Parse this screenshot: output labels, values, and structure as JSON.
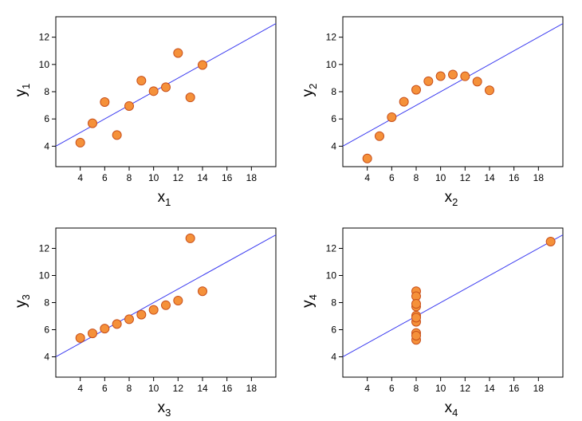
{
  "colors": {
    "points_fill": "#f5913a",
    "points_stroke": "#c8501c",
    "fit_line": "#3b3bf0"
  },
  "chart_data": [
    {
      "type": "scatter",
      "xlabel": "x",
      "xlabel_sub": "1",
      "ylabel": "y",
      "ylabel_sub": "1",
      "xlim": [
        2,
        20
      ],
      "ylim": [
        2.5,
        13.5
      ],
      "xticks": [
        "4",
        "6",
        "8",
        "10",
        "12",
        "14",
        "16",
        "18"
      ],
      "yticks": [
        "4",
        "6",
        "8",
        "10",
        "12"
      ],
      "x": [
        10,
        8,
        13,
        9,
        11,
        14,
        6,
        4,
        12,
        7,
        5
      ],
      "y": [
        8.04,
        6.95,
        7.58,
        8.81,
        8.33,
        9.96,
        7.24,
        4.26,
        10.84,
        4.82,
        5.68
      ],
      "fit": {
        "intercept": 3.0,
        "slope": 0.5
      }
    },
    {
      "type": "scatter",
      "xlabel": "x",
      "xlabel_sub": "2",
      "ylabel": "y",
      "ylabel_sub": "2",
      "xlim": [
        2,
        20
      ],
      "ylim": [
        2.5,
        13.5
      ],
      "xticks": [
        "4",
        "6",
        "8",
        "10",
        "12",
        "14",
        "16",
        "18"
      ],
      "yticks": [
        "4",
        "6",
        "8",
        "10",
        "12"
      ],
      "x": [
        10,
        8,
        13,
        9,
        11,
        14,
        6,
        4,
        12,
        7,
        5
      ],
      "y": [
        9.14,
        8.14,
        8.74,
        8.77,
        9.26,
        8.1,
        6.13,
        3.1,
        9.13,
        7.26,
        4.74
      ],
      "fit": {
        "intercept": 3.0,
        "slope": 0.5
      }
    },
    {
      "type": "scatter",
      "xlabel": "x",
      "xlabel_sub": "3",
      "ylabel": "y",
      "ylabel_sub": "3",
      "xlim": [
        2,
        20
      ],
      "ylim": [
        2.5,
        13.5
      ],
      "xticks": [
        "4",
        "6",
        "8",
        "10",
        "12",
        "14",
        "16",
        "18"
      ],
      "yticks": [
        "4",
        "6",
        "8",
        "10",
        "12"
      ],
      "x": [
        10,
        8,
        13,
        9,
        11,
        14,
        6,
        4,
        12,
        7,
        5
      ],
      "y": [
        7.46,
        6.77,
        12.74,
        7.11,
        7.81,
        8.84,
        6.08,
        5.39,
        8.15,
        6.42,
        5.73
      ],
      "fit": {
        "intercept": 3.0,
        "slope": 0.5
      }
    },
    {
      "type": "scatter",
      "xlabel": "x",
      "xlabel_sub": "4",
      "ylabel": "y",
      "ylabel_sub": "4",
      "xlim": [
        2,
        20
      ],
      "ylim": [
        2.5,
        13.5
      ],
      "xticks": [
        "4",
        "6",
        "8",
        "10",
        "12",
        "14",
        "16",
        "18"
      ],
      "yticks": [
        "4",
        "6",
        "8",
        "10",
        "12"
      ],
      "x": [
        8,
        8,
        8,
        8,
        8,
        8,
        8,
        19,
        8,
        8,
        8
      ],
      "y": [
        6.58,
        5.76,
        7.71,
        8.84,
        8.47,
        7.04,
        5.25,
        12.5,
        5.56,
        7.91,
        6.89
      ],
      "fit": {
        "intercept": 3.0,
        "slope": 0.5
      }
    }
  ]
}
